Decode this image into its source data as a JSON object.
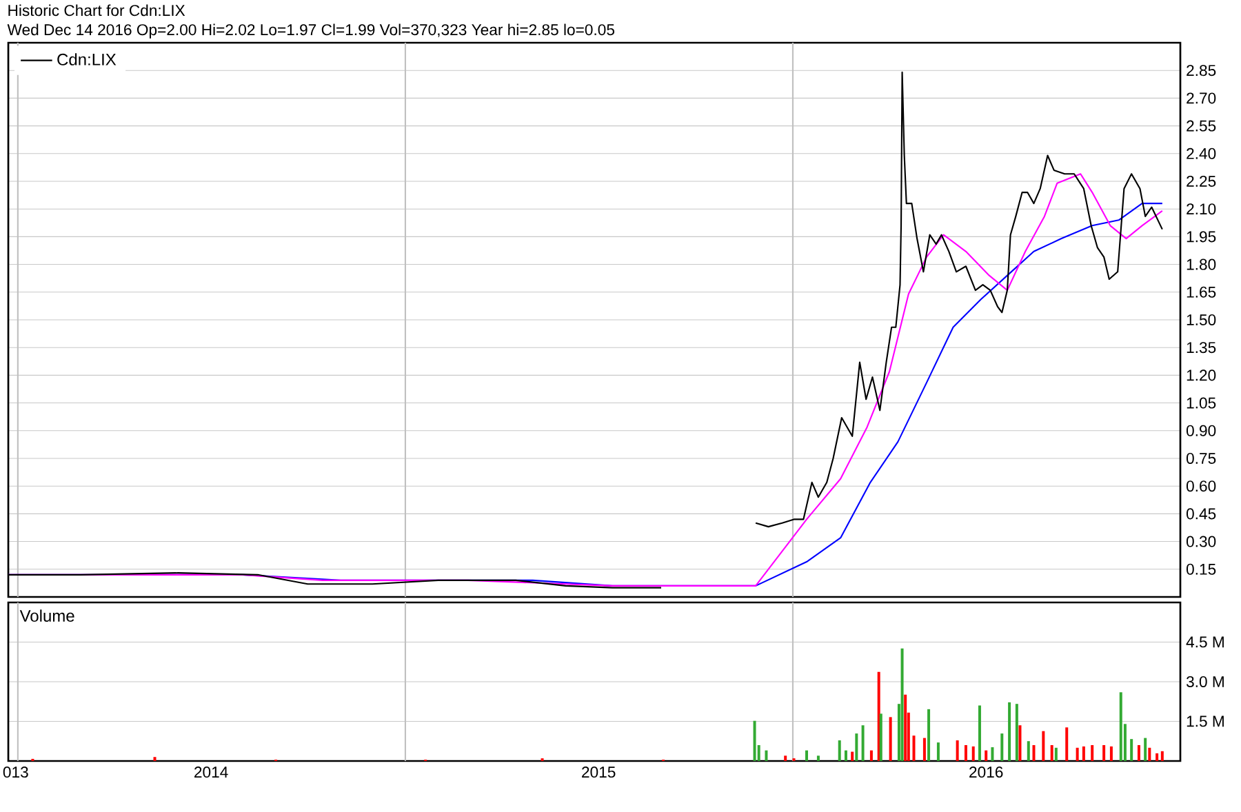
{
  "chart_data": [
    {
      "type": "line",
      "title": "Historic Chart for Cdn:LIX",
      "subtitle": "Wed Dec 14 2016  Op=2.00  Hi=2.02  Lo=1.97  Cl=1.99  Vol=370,323  Year hi=2.85  lo=0.05",
      "xlim": [
        "2013-12-23",
        "2016-12-31"
      ],
      "ylim": [
        0,
        3.0
      ],
      "xticks": [
        {
          "value": "2013-12-30",
          "label": null
        },
        {
          "value": "2014-07-02",
          "label": null
        },
        {
          "value": "2015-07-02",
          "label": null
        },
        {
          "value": "2016-07-01",
          "label": null
        }
      ],
      "yticks": [
        0.15,
        {
          "value": 0.3,
          "label": "0.30"
        },
        0.45,
        {
          "value": 0.6,
          "label": "0.60"
        },
        0.75,
        {
          "value": 0.9,
          "label": "0.90"
        },
        1.05,
        {
          "value": 1.2,
          "label": "1.20"
        },
        1.35,
        {
          "value": 1.5,
          "label": "1.50"
        },
        1.65,
        {
          "value": 1.8,
          "label": "1.80"
        },
        1.95,
        {
          "value": 2.1,
          "label": "2.10"
        },
        2.25,
        {
          "value": 2.4,
          "label": "2.40"
        },
        2.55,
        {
          "value": 2.7,
          "label": "2.70"
        },
        2.85
      ],
      "tick_labels": "y",
      "grid": "y",
      "legend": "top left",
      "ref_lines": [
        {
          "axis": "x",
          "value": "2014-01-01",
          "color": "#c0c0c0"
        },
        {
          "axis": "x",
          "value": "2015-01-01",
          "color": "#c0c0c0"
        },
        {
          "axis": "x",
          "value": "2016-01-01",
          "color": "#c0c0c0"
        }
      ],
      "series": [
        {
          "name": "Cdn:LIX",
          "color": "#000000",
          "x": [
            "2013-12-23",
            "2014-03-01",
            "2014-06-01",
            "2014-08-15",
            "2014-10-01",
            "2014-12-01",
            "2015-02-01",
            "2015-04-15",
            "2015-06-01",
            "2015-07-15",
            "2015-08-30",
            "2015-10-15",
            "2015-11-27",
            "2015-12-09",
            "2015-12-22",
            "2016-01-02",
            "2016-01-11",
            "2016-01-19",
            "2016-01-25",
            "2016-02-02",
            "2016-02-08",
            "2016-02-16",
            "2016-02-26",
            "2016-03-04",
            "2016-03-10",
            "2016-03-16",
            "2016-03-23",
            "2016-03-29",
            "2016-04-03",
            "2016-04-07",
            "2016-04-11",
            "2016-04-12",
            "2016-04-13",
            "2016-04-15",
            "2016-04-17",
            "2016-04-22",
            "2016-04-27",
            "2016-05-03",
            "2016-05-09",
            "2016-05-15",
            "2016-05-20",
            "2016-05-27",
            "2016-06-03",
            "2016-06-12",
            "2016-06-21",
            "2016-06-28",
            "2016-07-05",
            "2016-07-12",
            "2016-07-16",
            "2016-07-21",
            "2016-07-24",
            "2016-07-29",
            "2016-08-04",
            "2016-08-09",
            "2016-08-15",
            "2016-08-21",
            "2016-08-28",
            "2016-09-03",
            "2016-09-13",
            "2016-09-22",
            "2016-10-01",
            "2016-10-08",
            "2016-10-14",
            "2016-10-20",
            "2016-10-25",
            "2016-11-02",
            "2016-11-08",
            "2016-11-15",
            "2016-11-23",
            "2016-11-28",
            "2016-12-04",
            "2016-12-14"
          ],
          "values": [
            0.12,
            0.12,
            0.13,
            0.12,
            0.07,
            0.07,
            0.09,
            0.09,
            0.06,
            0.05,
            0.05,
            null,
            0.4,
            0.38,
            0.4,
            0.42,
            0.42,
            0.62,
            0.54,
            0.62,
            0.75,
            0.97,
            0.87,
            1.27,
            1.07,
            1.19,
            1.01,
            1.27,
            1.46,
            1.46,
            1.69,
            2.01,
            2.84,
            2.39,
            2.13,
            2.13,
            1.94,
            1.76,
            1.96,
            1.91,
            1.96,
            1.87,
            1.76,
            1.79,
            1.66,
            1.69,
            1.66,
            1.57,
            1.54,
            1.66,
            1.96,
            2.06,
            2.19,
            2.19,
            2.13,
            2.21,
            2.39,
            2.31,
            2.29,
            2.29,
            2.21,
            2.01,
            1.89,
            1.84,
            1.72,
            1.76,
            2.21,
            2.29,
            2.21,
            2.06,
            2.11,
            1.99
          ]
        },
        {
          "color": "#ff00ff",
          "x": [
            "2013-12-23",
            "2014-08-01",
            "2014-10-15",
            "2015-03-01",
            "2015-07-15",
            "2015-11-27",
            "2016-01-14",
            "2016-02-15",
            "2016-03-11",
            "2016-04-01",
            "2016-04-19",
            "2016-05-06",
            "2016-05-22",
            "2016-06-12",
            "2016-07-04",
            "2016-07-21",
            "2016-08-07",
            "2016-08-25",
            "2016-09-06",
            "2016-09-28",
            "2016-10-09",
            "2016-10-26",
            "2016-11-10",
            "2016-11-25",
            "2016-12-14"
          ],
          "values": [
            0.12,
            0.12,
            0.09,
            0.09,
            0.06,
            0.06,
            0.42,
            0.64,
            0.92,
            1.22,
            1.64,
            1.84,
            1.96,
            1.87,
            1.74,
            1.66,
            1.87,
            2.06,
            2.24,
            2.29,
            2.19,
            2.01,
            1.94,
            2.01,
            2.09
          ]
        },
        {
          "color": "#0000ff",
          "x": [
            "2013-12-23",
            "2014-08-01",
            "2014-11-01",
            "2015-05-01",
            "2015-07-15",
            "2015-11-27",
            "2016-01-14",
            "2016-02-15",
            "2016-03-14",
            "2016-04-09",
            "2016-05-06",
            "2016-05-31",
            "2016-06-26",
            "2016-07-21",
            "2016-08-15",
            "2016-09-10",
            "2016-10-09",
            "2016-11-03",
            "2016-11-25",
            "2016-12-14"
          ],
          "values": [
            0.12,
            0.12,
            0.09,
            0.09,
            0.06,
            0.06,
            0.19,
            0.32,
            0.62,
            0.84,
            1.16,
            1.46,
            1.61,
            1.74,
            1.87,
            1.94,
            2.01,
            2.04,
            2.13,
            2.13
          ]
        }
      ]
    },
    {
      "type": "bar",
      "title": "Volume",
      "xlim": [
        "2013-12-23",
        "2016-12-31"
      ],
      "ylim": [
        0,
        6.0
      ],
      "xticks": [
        {
          "value": "2013-12-30",
          "label": "013"
        },
        {
          "value": "2014-07-02",
          "label": "2014"
        },
        {
          "value": "2015-07-02",
          "label": "2015"
        },
        {
          "value": "2016-07-01",
          "label": "2016"
        }
      ],
      "yticks": [
        {
          "value": 1.5,
          "label": "1.5 M"
        },
        {
          "value": 3.0,
          "label": "3.0 M"
        },
        {
          "value": 4.5,
          "label": "4.5 M"
        }
      ],
      "grid": "y",
      "ref_lines": [
        {
          "axis": "x",
          "value": "2014-01-01",
          "color": "#c0c0c0"
        },
        {
          "axis": "x",
          "value": "2015-01-01",
          "color": "#c0c0c0"
        },
        {
          "axis": "x",
          "value": "2016-01-01",
          "color": "#c0c0c0"
        }
      ],
      "x": [
        "2014-01-15",
        "2014-05-10",
        "2014-09-01",
        "2015-01-20",
        "2015-05-10",
        "2015-09-01",
        "2015-11-26",
        "2015-11-30",
        "2015-12-07",
        "2015-12-25",
        "2016-01-02",
        "2016-01-14",
        "2016-01-25",
        "2016-02-14",
        "2016-02-20",
        "2016-02-26",
        "2016-03-01",
        "2016-03-07",
        "2016-03-15",
        "2016-03-22",
        "2016-03-24",
        "2016-04-02",
        "2016-04-10",
        "2016-04-13",
        "2016-04-16",
        "2016-04-19",
        "2016-04-24",
        "2016-05-04",
        "2016-05-08",
        "2016-05-17",
        "2016-06-04",
        "2016-06-12",
        "2016-06-19",
        "2016-06-25",
        "2016-07-01",
        "2016-07-07",
        "2016-07-16",
        "2016-07-23",
        "2016-07-30",
        "2016-08-02",
        "2016-08-10",
        "2016-08-15",
        "2016-08-24",
        "2016-09-01",
        "2016-09-05",
        "2016-09-15",
        "2016-09-25",
        "2016-10-01",
        "2016-10-09",
        "2016-10-20",
        "2016-10-27",
        "2016-11-05",
        "2016-11-09",
        "2016-11-15",
        "2016-11-22",
        "2016-11-28",
        "2016-12-02",
        "2016-12-09",
        "2016-12-14"
      ],
      "values": [
        0.08,
        0.15,
        0.05,
        0.05,
        0.1,
        0.05,
        1.52,
        0.6,
        0.4,
        0.2,
        0.1,
        0.4,
        0.2,
        0.78,
        0.4,
        0.35,
        1.04,
        1.35,
        0.4,
        3.37,
        1.79,
        1.66,
        2.16,
        4.26,
        2.51,
        1.83,
        0.96,
        0.87,
        1.96,
        0.7,
        0.78,
        0.6,
        0.55,
        2.1,
        0.4,
        0.52,
        1.04,
        2.22,
        2.16,
        1.35,
        0.75,
        0.6,
        1.13,
        0.6,
        0.5,
        1.27,
        0.5,
        0.55,
        0.6,
        0.6,
        0.55,
        2.6,
        1.4,
        0.83,
        0.6,
        0.87,
        0.5,
        0.29,
        0.37
      ],
      "colors": [
        "#ff0000",
        "#ff0000",
        "#ff0000",
        "#ff0000",
        "#ff0000",
        "#ff0000",
        "#33aa33",
        "#33aa33",
        "#33aa33",
        "#ff0000",
        "#ff0000",
        "#33aa33",
        "#33aa33",
        "#33aa33",
        "#33aa33",
        "#ff0000",
        "#33aa33",
        "#33aa33",
        "#ff0000",
        "#ff0000",
        "#33aa33",
        "#ff0000",
        "#33aa33",
        "#33aa33",
        "#ff0000",
        "#ff0000",
        "#ff0000",
        "#ff0000",
        "#33aa33",
        "#33aa33",
        "#ff0000",
        "#ff0000",
        "#ff0000",
        "#33aa33",
        "#ff0000",
        "#33aa33",
        "#33aa33",
        "#33aa33",
        "#33aa33",
        "#ff0000",
        "#33aa33",
        "#ff0000",
        "#ff0000",
        "#ff0000",
        "#33aa33",
        "#ff0000",
        "#ff0000",
        "#ff0000",
        "#ff0000",
        "#ff0000",
        "#ff0000",
        "#33aa33",
        "#33aa33",
        "#33aa33",
        "#ff0000",
        "#33aa33",
        "#ff0000",
        "#ff0000",
        "#ff0000"
      ]
    }
  ]
}
